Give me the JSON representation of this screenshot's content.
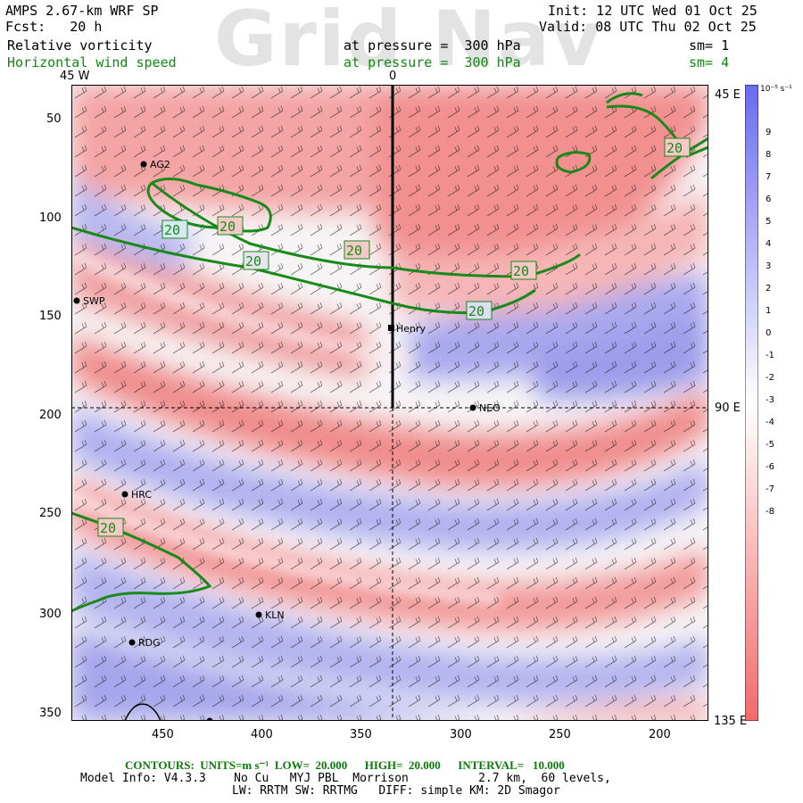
{
  "watermark": "Grid Nav",
  "header": {
    "line1_left": "AMPS 2.67-km WRF SP",
    "line1_right": "Init: 12 UTC Wed 01 Oct 25",
    "line2_left": "Fcst:   20 h",
    "line2_right": "Valid: 08 UTC Thu 02 Oct 25",
    "field1_name": "Relative vorticity",
    "field1_level": "at pressure =  300 hPa",
    "field1_sm": "sm= 1",
    "field2_name": "Horizontal wind speed",
    "field2_level": "at pressure =  300 hPa",
    "field2_sm": "sm= 4"
  },
  "longitude_labels": {
    "top_left": "45 W",
    "top_center": "0",
    "right_top": "45 E",
    "right_mid": "90 E",
    "right_bottom": "135 E"
  },
  "y_ticks": [
    "50",
    "100",
    "150",
    "200",
    "250",
    "300",
    "350"
  ],
  "x_ticks": [
    "450",
    "400",
    "350",
    "300",
    "250",
    "200"
  ],
  "stations": [
    {
      "name": "AG2"
    },
    {
      "name": "SWP"
    },
    {
      "name": "Henry"
    },
    {
      "name": "NEO"
    },
    {
      "name": "HRC"
    },
    {
      "name": "KLN"
    },
    {
      "name": "RDG"
    }
  ],
  "contour_labels": [
    "20",
    "20",
    "20",
    "20",
    "20",
    "20",
    "20",
    "20"
  ],
  "colorbar": {
    "unit": "10⁻⁵ s⁻¹",
    "labels": [
      "9",
      "8",
      "7",
      "6",
      "5",
      "4",
      "3",
      "2",
      "1",
      "0",
      "-1",
      "-2",
      "-3",
      "-4",
      "-5",
      "-6",
      "-7",
      "-8"
    ],
    "positive_color": "#6a6af0",
    "negative_color": "#f26a6a"
  },
  "footer": {
    "contours": "CONTOURS:  UNITS=m s⁻¹  LOW=  20.000      HIGH=  20.000      INTERVAL=   10.000",
    "model_info": "Model Info: V4.3.3    No Cu   MYJ PBL  Morrison          2.7 km,  60 levels,",
    "physics": "LW: RRTM SW: RRTMG   DIFF: simple KM: 2D Smagor"
  }
}
